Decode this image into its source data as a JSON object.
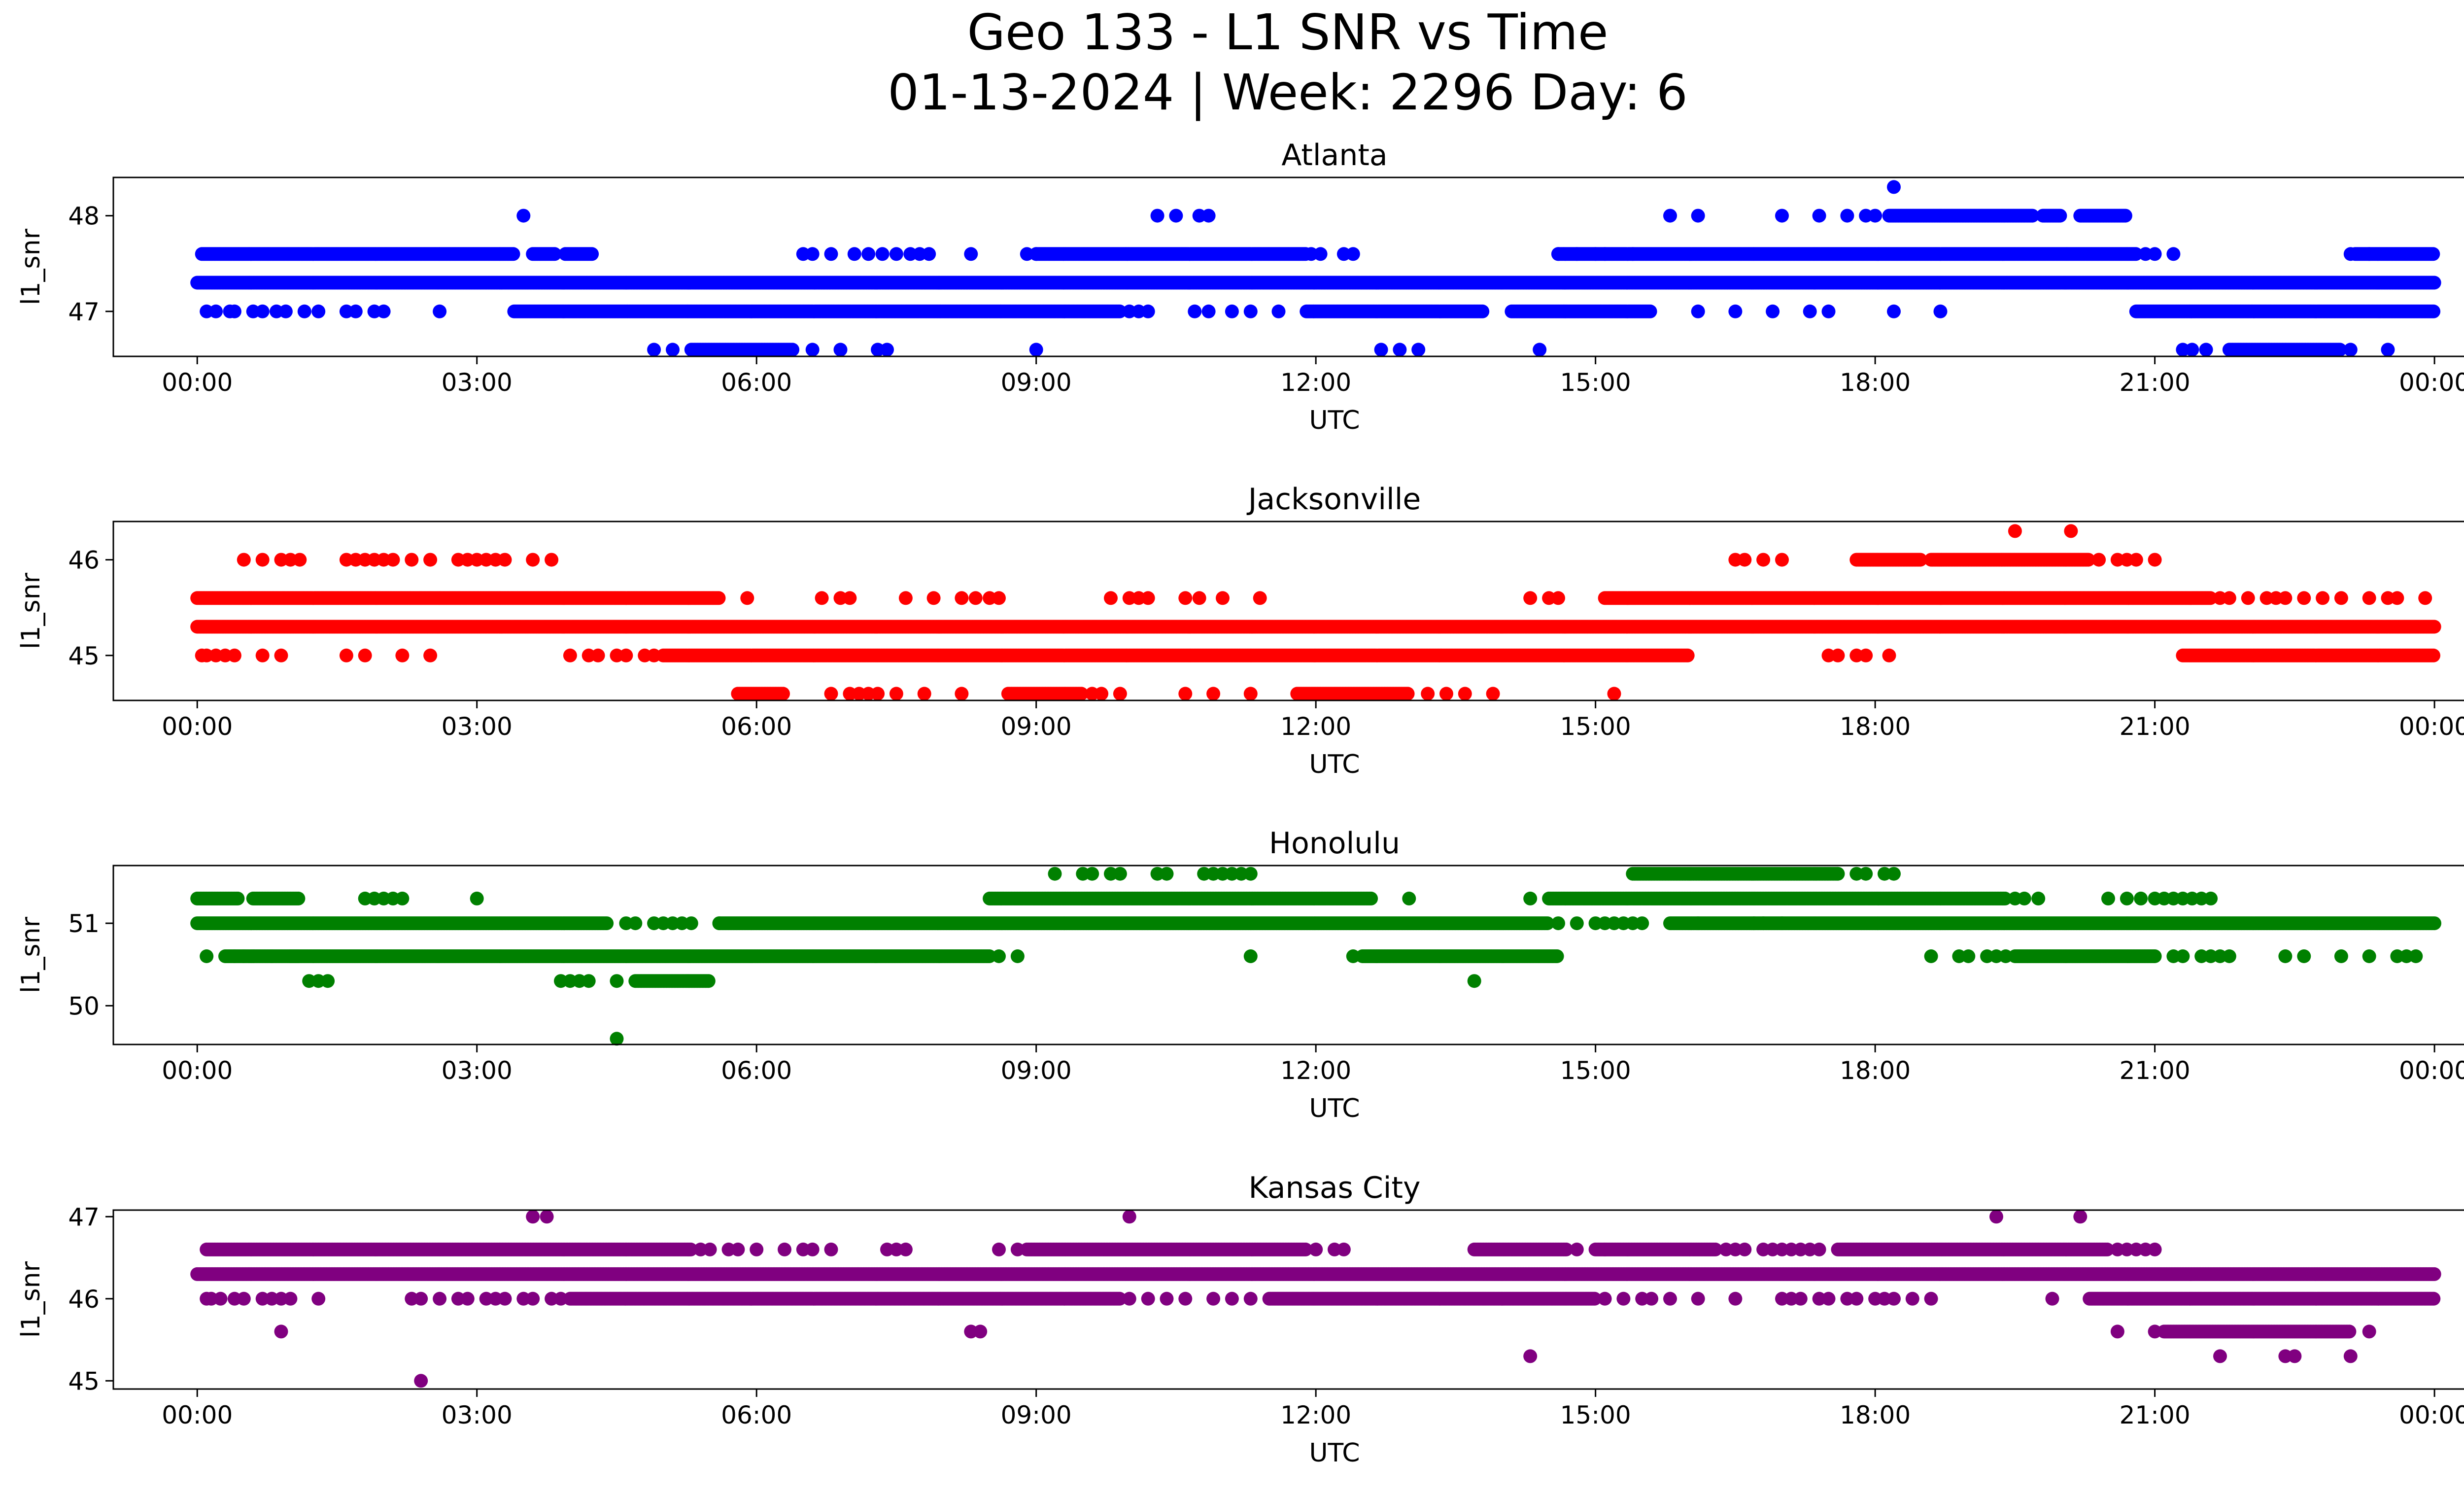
{
  "figure": {
    "title_line1": "Geo 133 - L1 SNR vs Time",
    "title_line2": "01-13-2024 | Week: 2296 Day: 6"
  },
  "chart_data": [
    {
      "type": "scatter",
      "title": "Atlanta",
      "xlabel": "UTC",
      "ylabel": "l1_snr",
      "color": "#0000ff",
      "xlim": [
        -0.9,
        25.3
      ],
      "ylim": [
        46.53,
        48.4
      ],
      "xticks": [
        0,
        3,
        6,
        9,
        12,
        15,
        18,
        21,
        24
      ],
      "xtick_labels": [
        "00:00",
        "03:00",
        "06:00",
        "09:00",
        "12:00",
        "15:00",
        "18:00",
        "21:00",
        "00:00"
      ],
      "yticks": [
        47,
        48
      ],
      "series": [
        {
          "y": 47.3,
          "segments": [
            [
              0.0,
              24.0
            ]
          ],
          "points": []
        },
        {
          "y": 47.6,
          "segments": [
            [
              0.05,
              3.4
            ],
            [
              3.6,
              3.85
            ],
            [
              3.95,
              4.25
            ],
            [
              9.0,
              11.9
            ],
            [
              14.6,
              20.8
            ],
            [
              23.15,
              24.0
            ]
          ],
          "points": [
            6.5,
            6.6,
            6.8,
            7.05,
            7.2,
            7.35,
            7.5,
            7.65,
            7.75,
            7.85,
            8.3,
            8.9,
            9.0,
            11.95,
            12.05,
            12.3,
            12.4,
            14.6,
            14.8,
            15.0,
            15.1,
            15.4,
            20.9,
            21.0,
            21.2,
            23.1,
            23.3
          ]
        },
        {
          "y": 47.0,
          "segments": [
            [
              3.4,
              9.9
            ],
            [
              11.9,
              13.8
            ],
            [
              14.1,
              15.6
            ],
            [
              20.8,
              24.0
            ]
          ],
          "points": [
            0.1,
            0.2,
            0.35,
            0.4,
            0.6,
            0.7,
            0.85,
            0.95,
            1.15,
            1.3,
            1.6,
            1.7,
            1.9,
            2.0,
            2.6,
            10.0,
            10.1,
            10.2,
            10.7,
            10.85,
            11.1,
            11.3,
            11.6,
            16.1,
            16.5,
            16.9,
            17.3,
            17.5,
            18.2,
            18.7
          ]
        },
        {
          "y": 46.6,
          "segments": [
            [
              5.3,
              6.4
            ],
            [
              21.8,
              23.0
            ]
          ],
          "points": [
            4.9,
            5.1,
            6.6,
            6.9,
            7.3,
            7.4,
            9.0,
            12.7,
            12.9,
            13.1,
            14.4,
            21.3,
            21.4,
            21.55,
            23.1,
            23.5
          ]
        },
        {
          "y": 48.0,
          "segments": [
            [
              18.15,
              19.7
            ],
            [
              19.8,
              20.0
            ],
            [
              20.2,
              20.7
            ]
          ],
          "points": [
            3.5,
            10.3,
            10.5,
            10.75,
            10.85,
            15.8,
            16.1,
            17.0,
            17.4,
            17.7,
            17.9,
            18.0
          ]
        },
        {
          "y": 48.3,
          "segments": [],
          "points": [
            18.2
          ]
        }
      ]
    },
    {
      "type": "scatter",
      "title": "Jacksonville",
      "xlabel": "UTC",
      "ylabel": "l1_snr",
      "color": "#ff0000",
      "xlim": [
        -0.9,
        25.3
      ],
      "ylim": [
        44.53,
        46.4
      ],
      "xticks": [
        0,
        3,
        6,
        9,
        12,
        15,
        18,
        21,
        24
      ],
      "xtick_labels": [
        "00:00",
        "03:00",
        "06:00",
        "09:00",
        "12:00",
        "15:00",
        "18:00",
        "21:00",
        "00:00"
      ],
      "yticks": [
        45,
        46
      ],
      "series": [
        {
          "y": 45.3,
          "segments": [
            [
              0.0,
              24.0
            ]
          ],
          "points": []
        },
        {
          "y": 45.6,
          "segments": [
            [
              0.0,
              5.6
            ],
            [
              15.1,
              21.6
            ]
          ],
          "points": [
            5.9,
            6.7,
            6.9,
            7.0,
            7.6,
            7.9,
            8.2,
            8.35,
            8.5,
            8.6,
            9.8,
            10.0,
            10.1,
            10.2,
            10.6,
            10.75,
            11.0,
            11.4,
            14.3,
            14.5,
            14.6,
            21.7,
            21.8,
            22.0,
            22.2,
            22.3,
            22.4,
            22.6,
            22.8,
            23.0,
            23.3,
            23.5,
            23.6,
            23.9
          ]
        },
        {
          "y": 45.0,
          "segments": [
            [
              5.0,
              16.0
            ],
            [
              21.3,
              24.0
            ]
          ],
          "points": [
            0.05,
            0.1,
            0.2,
            0.3,
            0.4,
            0.7,
            0.9,
            1.6,
            1.8,
            2.2,
            2.5,
            4.0,
            4.2,
            4.3,
            4.5,
            4.6,
            4.8,
            4.9,
            17.5,
            17.6,
            17.8,
            17.9,
            18.15
          ]
        },
        {
          "y": 44.6,
          "segments": [
            [
              5.8,
              6.3
            ],
            [
              8.7,
              9.5
            ],
            [
              11.8,
              13.0
            ]
          ],
          "points": [
            6.8,
            7.0,
            7.1,
            7.2,
            7.3,
            7.5,
            7.8,
            8.2,
            9.6,
            9.7,
            9.9,
            10.6,
            10.9,
            11.3,
            13.2,
            13.4,
            13.6,
            13.9,
            15.2
          ]
        },
        {
          "y": 46.0,
          "segments": [
            [
              17.8,
              18.5
            ],
            [
              18.6,
              20.3
            ]
          ],
          "points": [
            0.5,
            0.7,
            0.9,
            1.0,
            1.1,
            1.6,
            1.7,
            1.8,
            1.9,
            2.0,
            2.1,
            2.3,
            2.5,
            2.8,
            2.9,
            3.0,
            3.1,
            3.2,
            3.3,
            3.6,
            3.8,
            16.5,
            16.6,
            16.8,
            17.0,
            20.4,
            20.6,
            20.7,
            20.8,
            21.0
          ]
        },
        {
          "y": 46.3,
          "segments": [],
          "points": [
            19.5,
            20.1
          ]
        }
      ]
    },
    {
      "type": "scatter",
      "title": "Honolulu",
      "xlabel": "UTC",
      "ylabel": "l1_snr",
      "color": "#008000",
      "xlim": [
        -0.9,
        25.3
      ],
      "ylim": [
        49.53,
        51.7
      ],
      "xticks": [
        0,
        3,
        6,
        9,
        12,
        15,
        18,
        21,
        24
      ],
      "xtick_labels": [
        "00:00",
        "03:00",
        "06:00",
        "09:00",
        "12:00",
        "15:00",
        "18:00",
        "21:00",
        "00:00"
      ],
      "yticks": [
        50,
        51
      ],
      "series": [
        {
          "y": 51.0,
          "segments": [
            [
              0.0,
              4.4
            ],
            [
              5.6,
              14.5
            ],
            [
              15.8,
              24.0
            ]
          ],
          "points": [
            4.6,
            4.7,
            4.9,
            5.0,
            5.1,
            5.2,
            5.3,
            5.6,
            14.6,
            14.8,
            15.0,
            15.1,
            15.2,
            15.3,
            15.4,
            15.5,
            16.1,
            16.7,
            16.8,
            17.0
          ]
        },
        {
          "y": 51.3,
          "segments": [
            [
              0.0,
              0.45
            ],
            [
              0.6,
              1.1
            ],
            [
              8.5,
              12.6
            ],
            [
              14.5,
              19.4
            ]
          ],
          "points": [
            1.8,
            1.9,
            2.0,
            2.1,
            2.2,
            3.0,
            13.0,
            14.3,
            19.5,
            19.6,
            19.75,
            20.5,
            20.7,
            20.85,
            21.0,
            21.1,
            21.2,
            21.3,
            21.4,
            21.5,
            21.6
          ]
        },
        {
          "y": 50.6,
          "segments": [
            [
              0.3,
              1.1
            ],
            [
              1.0,
              8.5
            ],
            [
              12.5,
              14.6
            ],
            [
              19.5,
              21.0
            ]
          ],
          "points": [
            0.1,
            0.4,
            0.5,
            0.6,
            0.8,
            8.6,
            8.8,
            11.3,
            12.4,
            18.6,
            18.9,
            19.0,
            19.2,
            19.3,
            19.4,
            21.0,
            21.2,
            21.3,
            21.5,
            21.6,
            21.7,
            21.8,
            22.4,
            22.6,
            23.0,
            23.3,
            23.6,
            23.7,
            23.8
          ]
        },
        {
          "y": 51.6,
          "segments": [
            [
              15.4,
              17.6
            ]
          ],
          "points": [
            9.2,
            9.5,
            9.6,
            9.8,
            9.9,
            10.3,
            10.4,
            10.8,
            10.9,
            11.0,
            11.1,
            11.2,
            11.3,
            17.6,
            17.8,
            17.9,
            18.1,
            18.2
          ]
        },
        {
          "y": 50.3,
          "segments": [
            [
              4.7,
              5.5
            ]
          ],
          "points": [
            1.2,
            1.3,
            1.4,
            3.9,
            4.0,
            4.1,
            4.2,
            4.5,
            13.7
          ]
        },
        {
          "y": 49.6,
          "segments": [],
          "points": [
            4.5
          ]
        }
      ]
    },
    {
      "type": "scatter",
      "title": "Kansas City",
      "xlabel": "UTC",
      "ylabel": "l1_snr",
      "color": "#800080",
      "xlim": [
        -0.9,
        25.3
      ],
      "ylim": [
        44.9,
        47.08
      ],
      "xticks": [
        0,
        3,
        6,
        9,
        12,
        15,
        18,
        21,
        24
      ],
      "xtick_labels": [
        "00:00",
        "03:00",
        "06:00",
        "09:00",
        "12:00",
        "15:00",
        "18:00",
        "21:00",
        "00:00"
      ],
      "yticks": [
        45,
        46,
        47
      ],
      "series": [
        {
          "y": 46.3,
          "segments": [
            [
              0.0,
              24.0
            ]
          ],
          "points": []
        },
        {
          "y": 46.6,
          "segments": [
            [
              0.1,
              5.3
            ],
            [
              8.9,
              11.9
            ],
            [
              13.7,
              14.7
            ],
            [
              15.0,
              16.3
            ],
            [
              17.6,
              20.5
            ]
          ],
          "points": [
            5.4,
            5.5,
            5.7,
            5.8,
            6.0,
            6.3,
            6.5,
            6.6,
            6.8,
            7.4,
            7.5,
            7.6,
            8.6,
            8.8,
            12.0,
            12.2,
            12.3,
            14.8,
            15.1,
            16.4,
            16.5,
            16.6,
            16.8,
            16.9,
            17.0,
            17.1,
            17.2,
            17.3,
            17.4,
            20.6,
            20.7,
            20.8,
            20.9,
            21.0
          ]
        },
        {
          "y": 46.0,
          "segments": [
            [
              4.0,
              9.9
            ],
            [
              11.5,
              15.0
            ],
            [
              20.3,
              24.0
            ]
          ],
          "points": [
            0.1,
            0.15,
            0.25,
            0.4,
            0.5,
            0.7,
            0.8,
            0.9,
            1.0,
            1.3,
            2.3,
            2.4,
            2.6,
            2.8,
            2.9,
            3.1,
            3.2,
            3.3,
            3.5,
            3.6,
            3.8,
            3.9,
            10.0,
            10.2,
            10.4,
            10.6,
            10.9,
            11.1,
            11.3,
            15.1,
            15.3,
            15.5,
            15.6,
            15.8,
            16.1,
            16.5,
            17.0,
            17.1,
            17.2,
            17.4,
            17.5,
            17.7,
            17.8,
            18.0,
            18.1,
            18.2,
            18.4,
            18.6,
            19.9
          ]
        },
        {
          "y": 45.6,
          "segments": [
            [
              21.1,
              23.1
            ]
          ],
          "points": [
            0.9,
            8.3,
            8.4,
            20.6,
            21.0,
            23.3
          ]
        },
        {
          "y": 47.0,
          "segments": [],
          "points": [
            3.6,
            3.75,
            10.0,
            19.3,
            20.2
          ]
        },
        {
          "y": 45.3,
          "segments": [],
          "points": [
            14.3,
            21.7,
            22.4,
            22.5,
            23.1
          ]
        },
        {
          "y": 45.0,
          "segments": [],
          "points": [
            2.4
          ]
        }
      ]
    }
  ]
}
